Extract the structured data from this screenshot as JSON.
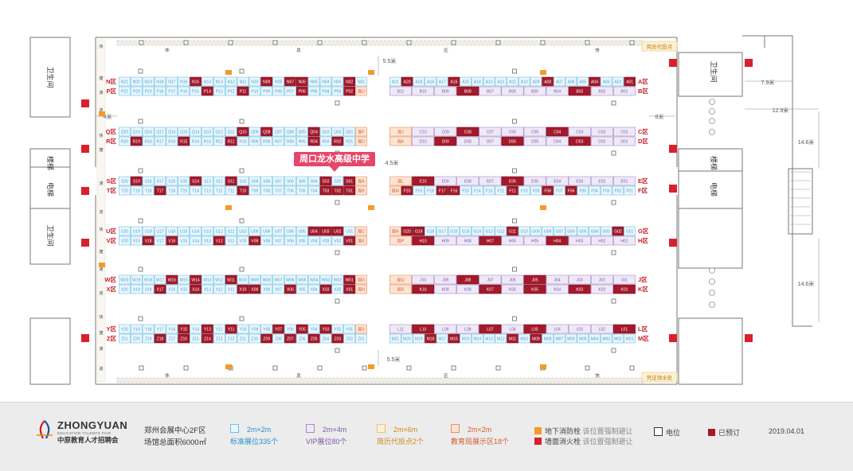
{
  "floorplan": {
    "callout": "周口龙水高级中学",
    "corridor": [
      "快",
      "捷",
      "通",
      "道"
    ],
    "side_labels": {
      "left": "4米",
      "right": "8米",
      "right_top": "7.9米",
      "right_mid": "12.9米",
      "right_upper_h": "14.6米",
      "right_lower_h": "14.6米"
    },
    "aisle_labels": {
      "top": "5.5米",
      "mid": "4.5米",
      "bottom": "5.5米"
    },
    "corner_labels": {
      "top_right": "简历代投点",
      "bottom_right": "凭证领水处"
    },
    "rooms": {
      "restroom": "卫生间",
      "stair": "楼梯",
      "elevator": "电梯"
    },
    "gutter_marks": [
      "休",
      "息",
      "区"
    ],
    "rows": {
      "left": [
        {
          "zones": [
            "N区",
            "P区"
          ],
          "top": [
            "N21",
            "N20",
            "N19",
            "N18",
            "N17",
            "N16",
            "N15",
            "N14",
            "N13",
            "N12",
            "N11",
            "N10",
            "N09",
            "N08",
            "N07",
            "N06",
            "N05",
            "N04",
            "N03",
            "N02",
            "N01"
          ],
          "bottom": [
            "P21",
            "P20",
            "P19",
            "P18",
            "P17",
            "P16",
            "P15",
            "P14",
            "P13",
            "P12",
            "P11",
            "P10",
            "P09",
            "P08",
            "P07",
            "P06",
            "P05",
            "P04",
            "P03",
            "P02",
            "局U"
          ],
          "booked": [
            "N15",
            "N09",
            "N07",
            "N06",
            "N02",
            "P14",
            "P11",
            "P06",
            "P02"
          ]
        },
        {
          "zones": [
            "Q区",
            "R区"
          ],
          "top": [
            "Q20",
            "Q19",
            "Q18",
            "Q17",
            "Q16",
            "Q15",
            "Q14",
            "Q13",
            "Q12",
            "Q11",
            "Q10",
            "Q09",
            "Q08",
            "Q07",
            "Q06",
            "Q05",
            "Q04",
            "Q03",
            "Q02",
            "Q01",
            "局F"
          ],
          "bottom": [
            "R20",
            "R19",
            "R18",
            "R17",
            "R16",
            "R15",
            "R14",
            "R13",
            "R12",
            "R11",
            "R10",
            "R09",
            "R08",
            "R07",
            "R06",
            "R05",
            "R04",
            "R03",
            "R02",
            "R01",
            "局D"
          ],
          "booked": [
            "Q10",
            "Q08",
            "Q04",
            "R19",
            "R15",
            "R11",
            "R04",
            "R02"
          ]
        },
        {
          "zones": [
            "S区",
            "T区"
          ],
          "top": [
            "S20",
            "S19",
            "S18",
            "S17",
            "S16",
            "S15",
            "S14",
            "S13",
            "S12",
            "S11",
            "S10",
            "S09",
            "S08",
            "S07",
            "S06",
            "S05",
            "S04",
            "S03",
            "S02",
            "S01",
            "局A"
          ],
          "bottom": [
            "T20",
            "T19",
            "T18",
            "T17",
            "T16",
            "T15",
            "T14",
            "T13",
            "T12",
            "T11",
            "T10",
            "T09",
            "T08",
            "T07",
            "T06",
            "T05",
            "T04",
            "T03",
            "T02",
            "T01",
            "局B"
          ],
          "booked": [
            "S19",
            "S14",
            "S11",
            "S03",
            "S01",
            "T17",
            "T10",
            "T03",
            "T02",
            "T01"
          ]
        },
        {
          "zones": [
            "U区",
            "V区"
          ],
          "top": [
            "U20",
            "U19",
            "U18",
            "U17",
            "U16",
            "U15",
            "U14",
            "U13",
            "U12",
            "U11",
            "U10",
            "U09",
            "U08",
            "U07",
            "U06",
            "U05",
            "U04",
            "U03",
            "U02",
            "U01",
            "局C"
          ],
          "bottom": [
            "V20",
            "V19",
            "V18",
            "V17",
            "V16",
            "V15",
            "V14",
            "V13",
            "V12",
            "V11",
            "V10",
            "V09",
            "V08",
            "V07",
            "V06",
            "V05",
            "V04",
            "V03",
            "V02",
            "V01",
            "局E"
          ],
          "booked": [
            "U04",
            "U03",
            "U02",
            "V18",
            "V16",
            "V12",
            "V09",
            "V01"
          ]
        },
        {
          "zones": [
            "W区",
            "X区"
          ],
          "top": [
            "W20",
            "W19",
            "W18",
            "W17",
            "W16",
            "W15",
            "W14",
            "W13",
            "W12",
            "W11",
            "W10",
            "W09",
            "W08",
            "W07",
            "W06",
            "W05",
            "W04",
            "W03",
            "W02",
            "W01",
            "局G"
          ],
          "bottom": [
            "X20",
            "X19",
            "X18",
            "X17",
            "X16",
            "X15",
            "X14",
            "X13",
            "X12",
            "X11",
            "X10",
            "X09",
            "X08",
            "X07",
            "X06",
            "X05",
            "X04",
            "X03",
            "X02",
            "X01",
            "局H"
          ],
          "booked": [
            "W16",
            "W14",
            "W11",
            "W01",
            "X17",
            "X14",
            "X10",
            "X09",
            "X06",
            "X03",
            "X01"
          ]
        },
        {
          "zones": [
            "Y区",
            "Z区"
          ],
          "top": [
            "Y20",
            "Y19",
            "Y18",
            "Y17",
            "Y16",
            "Y15",
            "Y14",
            "Y13",
            "Y12",
            "Y11",
            "Y10",
            "Y09",
            "Y08",
            "Y07",
            "Y06",
            "Y05",
            "Y04",
            "Y03",
            "Y02",
            "Y01",
            "局S"
          ],
          "bottom": [
            "Z21",
            "Z20",
            "Z19",
            "Z18",
            "Z17",
            "Z16",
            "Z15",
            "Z14",
            "Z13",
            "Z12",
            "Z11",
            "Z10",
            "Z09",
            "Z08",
            "Z07",
            "Z06",
            "Z05",
            "Z04",
            "Z03",
            "Z02",
            "Z01"
          ],
          "booked": [
            "Y15",
            "Y13",
            "Y11",
            "Y07",
            "Y05",
            "Y03",
            "Z18",
            "Z16",
            "Z14",
            "Z09",
            "Z07",
            "Z05",
            "Z03"
          ]
        }
      ],
      "right": [
        {
          "zones": [
            "A区",
            "B区"
          ],
          "top": [
            "A21",
            "A20",
            "A19",
            "A18",
            "A17",
            "A16",
            "A15",
            "A14",
            "A13",
            "A12",
            "A11",
            "A10",
            "A09",
            "A08",
            "A07",
            "A06",
            "A05",
            "A04",
            "A03",
            "A02",
            "A01"
          ],
          "bottom": [
            "B11",
            "B10",
            "B09",
            "B08",
            "B07",
            "B06",
            "B05",
            "B04",
            "B03",
            "B02",
            "B01"
          ],
          "booked": [
            "A20",
            "A16",
            "A08",
            "A04",
            "A01",
            "B08",
            "B03"
          ]
        },
        {
          "zones": [
            "C区",
            "D区"
          ],
          "top": [
            "局J",
            "C10",
            "C09",
            "C08",
            "C07",
            "C06",
            "C05",
            "C04",
            "C03",
            "C02",
            "C01"
          ],
          "bottom": [
            "局K",
            "D10",
            "D09",
            "D08",
            "D07",
            "D06",
            "D05",
            "D04",
            "D03",
            "D02",
            "D01"
          ],
          "booked": [
            "C08",
            "C04",
            "D09",
            "D06",
            "D03"
          ]
        },
        {
          "zones": [
            "E区",
            "F区"
          ],
          "top": [
            "局L",
            "E10",
            "E09",
            "E08",
            "E07",
            "E06",
            "E05",
            "E04",
            "E03",
            "E02",
            "E01"
          ],
          "bottom": [
            "局M",
            "F20",
            "F19",
            "F18",
            "F17",
            "F16",
            "F15",
            "F14",
            "F13",
            "F12",
            "F11",
            "F10",
            "F09",
            "F08",
            "F07",
            "F06",
            "F05",
            "F04",
            "F03",
            "F02",
            "F01"
          ],
          "booked": [
            "E10",
            "E06",
            "F20",
            "F17",
            "F16",
            "F11",
            "F08",
            "F06"
          ]
        },
        {
          "zones": [
            "G区",
            "H区"
          ],
          "top": [
            "局N",
            "G20",
            "G19",
            "G18",
            "G17",
            "G16",
            "G15",
            "G14",
            "G13",
            "G12",
            "G11",
            "G10",
            "G09",
            "G08",
            "G07",
            "G06",
            "G05",
            "G04",
            "G03",
            "G02",
            "G01"
          ],
          "bottom": [
            "局P",
            "H10",
            "H09",
            "H08",
            "H07",
            "H06",
            "H05",
            "H04",
            "H03",
            "H02",
            "H01"
          ],
          "booked": [
            "G20",
            "G19",
            "G11",
            "G02",
            "H10",
            "H07",
            "H04"
          ]
        },
        {
          "zones": [
            "J区",
            "K区"
          ],
          "top": [
            "局Q",
            "J10",
            "J09",
            "J08",
            "J07",
            "J06",
            "J05",
            "J04",
            "J03",
            "J02",
            "J01"
          ],
          "bottom": [
            "局R",
            "K10",
            "K09",
            "K08",
            "K07",
            "K06",
            "K05",
            "K04",
            "K03",
            "K02",
            "K01"
          ],
          "booked": [
            "J08",
            "J05",
            "K10",
            "K07",
            "K05",
            "K03",
            "K01"
          ]
        },
        {
          "zones": [
            "L区",
            "M区"
          ],
          "top": [
            "L11",
            "L10",
            "L09",
            "L08",
            "L07",
            "L06",
            "L05",
            "L04",
            "L03",
            "L02",
            "L01"
          ],
          "bottom": [
            "M21",
            "M20",
            "M19",
            "M18",
            "M17",
            "M16",
            "M15",
            "M14",
            "M13",
            "M12",
            "M11",
            "M10",
            "M09",
            "M08",
            "M07",
            "M06",
            "M05",
            "M04",
            "M03",
            "M02",
            "M01"
          ],
          "booked": [
            "L10",
            "L07",
            "L05",
            "L01",
            "M18",
            "M16",
            "M11",
            "M09"
          ]
        }
      ]
    }
  },
  "legend": {
    "brand_en": "ZHONGYUAN",
    "brand_sub": "EDUCATION TALENTS FAIR",
    "brand_cn": "中原教育人才招聘会",
    "venue": "郑州会展中心2F区",
    "area": "场馆总面积6000㎡",
    "standard_size": "2m×2m",
    "standard_label": "标准展位335个",
    "vip_size": "2m×4m",
    "vip_label": "VIP展位80个",
    "resume_size": "2m×6m",
    "resume_label": "简历代投点2个",
    "bureau_size": "2m×2m",
    "bureau_label": "教育局展示区18个",
    "hydrant_under": "地下消防栓",
    "hydrant_under_note": "该位置强制避让",
    "hydrant_wall": "墙面消火栓",
    "hydrant_wall_note": "该位置强制避让",
    "power": "电位",
    "booked": "已预订",
    "date": "2019.04.01"
  },
  "colors": {
    "standard": "#eaf6fd",
    "standard_border": "#6cc3e8",
    "vip": "#efe9f7",
    "vip_border": "#a58cc8",
    "booked": "#a3192b",
    "resume": "#fcf1d5",
    "bureau": "#fde3d4",
    "bureau_border": "#e98f5b",
    "hydrant_under": "#f39a29",
    "hydrant_wall": "#d9202d",
    "zone": "#c71c25"
  }
}
